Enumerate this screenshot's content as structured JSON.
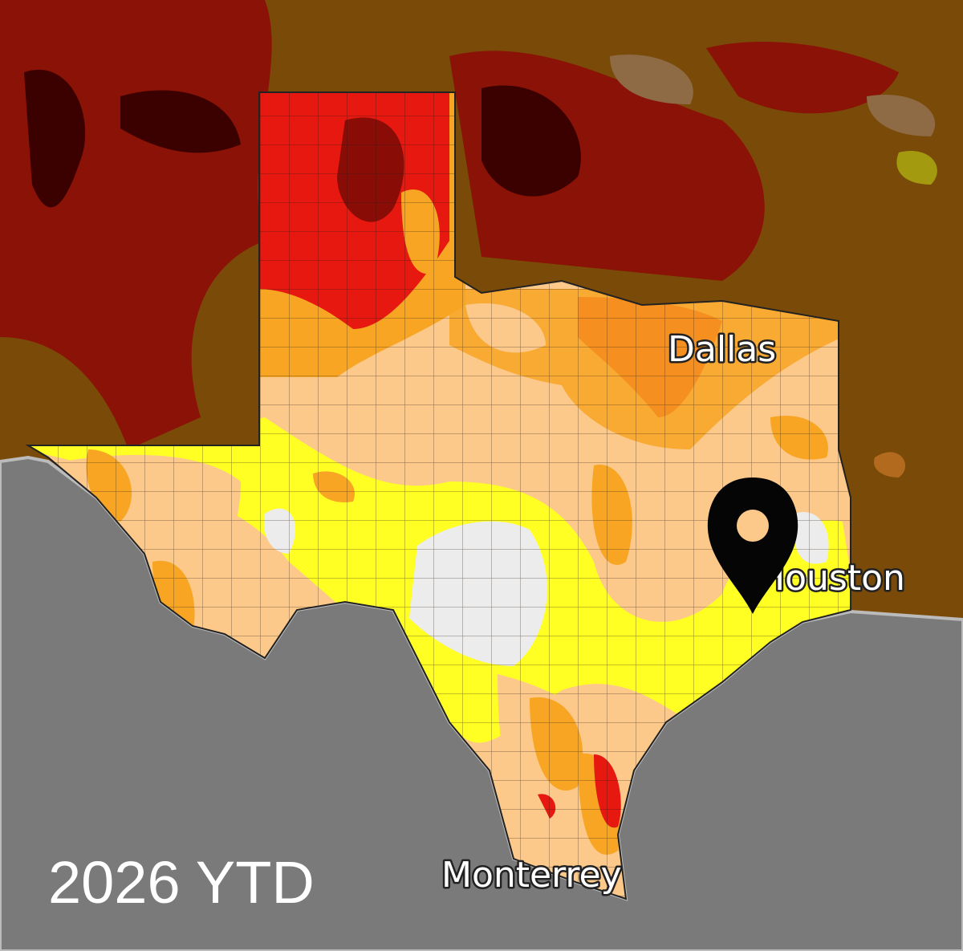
{
  "labels": {
    "dallas": "Dallas",
    "houston": "Houston",
    "monterrey": "Monterrey"
  },
  "caption": "2026 YTD"
}
